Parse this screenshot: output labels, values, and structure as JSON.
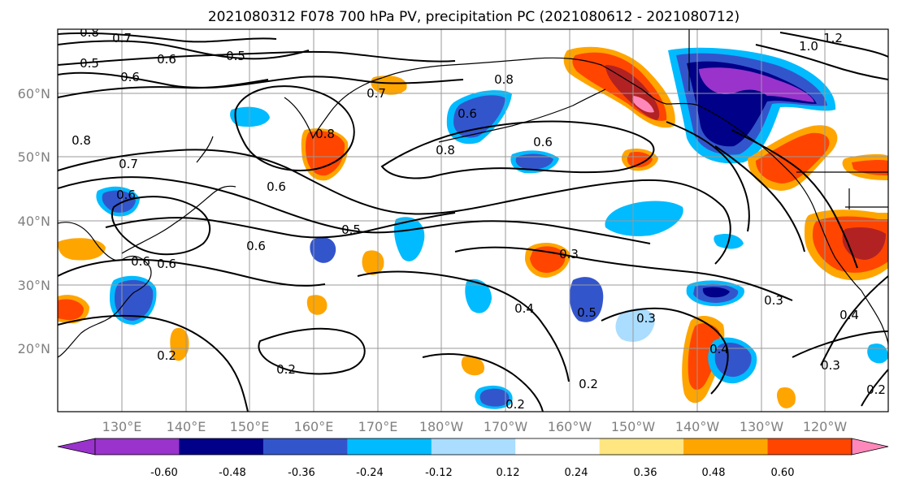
{
  "title": "2021080312 F078 700 hPa PV, precipitation PC (2021080612 - 2021080712)",
  "lat_labels": [
    "60°N",
    "50°N",
    "40°N",
    "30°N",
    "20°N"
  ],
  "lon_labels": [
    "130°E",
    "140°E",
    "150°E",
    "160°E",
    "170°E",
    "180°W",
    "170°W",
    "160°W",
    "150°W",
    "140°W",
    "130°W",
    "120°W"
  ],
  "colorbar": {
    "colors": [
      "#9933cc",
      "#000088",
      "#3355cc",
      "#00bbff",
      "#aaddff",
      "#ffffff",
      "#ffe680",
      "#ffa500",
      "#ff4500",
      "#b22222",
      "#ff88bb"
    ],
    "tick_labels": [
      "-0.60",
      "-0.48",
      "-0.36",
      "-0.24",
      "-0.12",
      "0.12",
      "0.24",
      "0.36",
      "0.48",
      "0.60"
    ]
  },
  "contour_labels": [
    "0.8",
    "0.7",
    "0.6",
    "0.5",
    "0.6",
    "0.5",
    "0.6",
    "0.7",
    "0.8",
    "0.6",
    "0.8",
    "0.6",
    "0.8",
    "0.6",
    "0.8",
    "0.7",
    "0.6",
    "0.5",
    "0.6",
    "0.6",
    "0.3",
    "0.4",
    "0.5",
    "0.3",
    "0.3",
    "0.2",
    "0.2",
    "0.2",
    "0.4",
    "0.3",
    "0.4",
    "0.2",
    "0.2",
    "1.0",
    "1.2"
  ]
}
